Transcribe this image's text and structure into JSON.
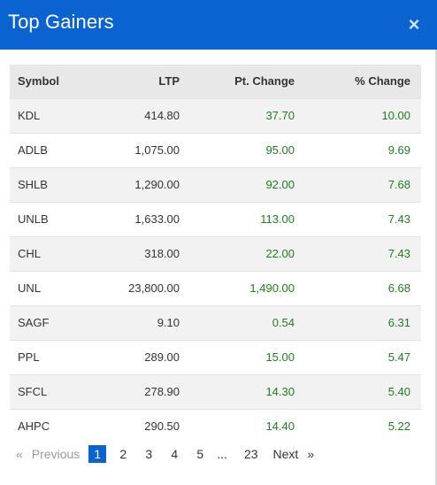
{
  "modal": {
    "title": "Top Gainers",
    "close_label": "×"
  },
  "table": {
    "headers": {
      "symbol": "Symbol",
      "ltp": "LTP",
      "pt_change": "Pt. Change",
      "pct_change": "% Change"
    },
    "rows": [
      {
        "symbol": "KDL",
        "ltp": "414.80",
        "pt_change": "37.70",
        "pct_change": "10.00"
      },
      {
        "symbol": "ADLB",
        "ltp": "1,075.00",
        "pt_change": "95.00",
        "pct_change": "9.69"
      },
      {
        "symbol": "SHLB",
        "ltp": "1,290.00",
        "pt_change": "92.00",
        "pct_change": "7.68"
      },
      {
        "symbol": "UNLB",
        "ltp": "1,633.00",
        "pt_change": "113.00",
        "pct_change": "7.43"
      },
      {
        "symbol": "CHL",
        "ltp": "318.00",
        "pt_change": "22.00",
        "pct_change": "7.43"
      },
      {
        "symbol": "UNL",
        "ltp": "23,800.00",
        "pt_change": "1,490.00",
        "pct_change": "6.68"
      },
      {
        "symbol": "SAGF",
        "ltp": "9.10",
        "pt_change": "0.54",
        "pct_change": "6.31"
      },
      {
        "symbol": "PPL",
        "ltp": "289.00",
        "pt_change": "15.00",
        "pct_change": "5.47"
      },
      {
        "symbol": "SFCL",
        "ltp": "278.90",
        "pt_change": "14.30",
        "pct_change": "5.40"
      },
      {
        "symbol": "AHPC",
        "ltp": "290.50",
        "pt_change": "14.40",
        "pct_change": "5.22"
      }
    ]
  },
  "pagination": {
    "first": "«",
    "previous": "Previous",
    "pages": [
      "1",
      "2",
      "3",
      "4",
      "5"
    ],
    "ellipsis": "...",
    "last_page": "23",
    "next": "Next",
    "last": "»",
    "active_page": "1"
  },
  "colors": {
    "header_bg": "#0a63d1",
    "positive": "#1e7e1e",
    "active_page_bg": "#0a63d1"
  }
}
